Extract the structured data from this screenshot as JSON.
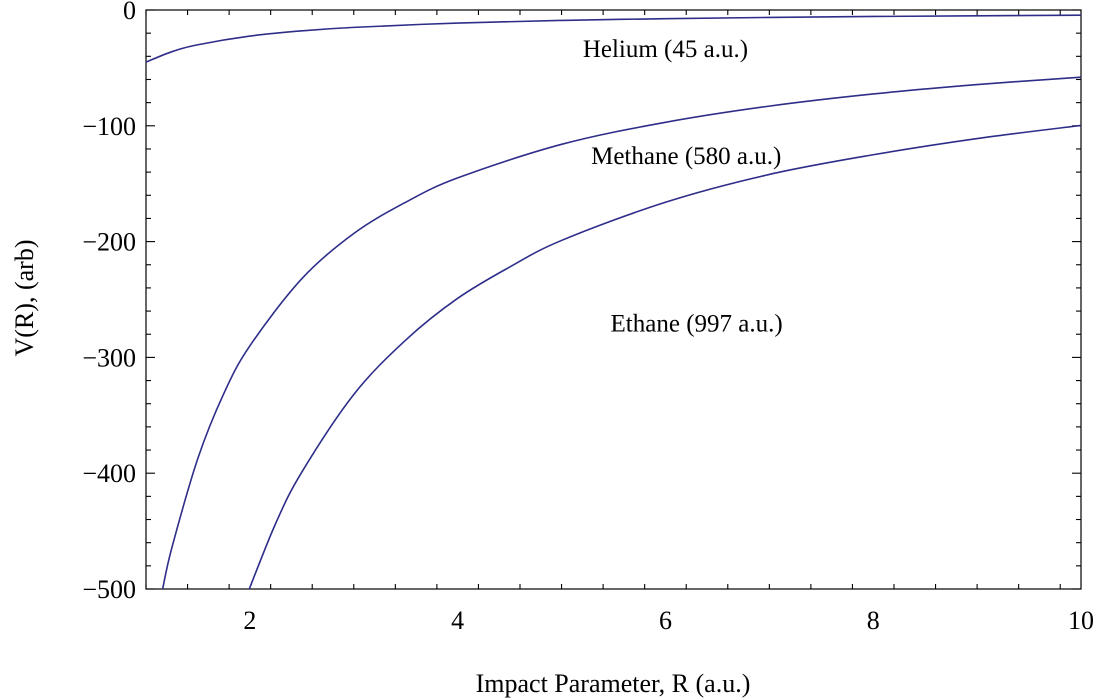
{
  "chart_data": {
    "type": "line",
    "title": "",
    "xlabel": "Impact Parameter, R (a.u.)",
    "ylabel": "V(R), (arb)",
    "xlim": [
      1,
      10
    ],
    "ylim": [
      -500,
      0
    ],
    "x_ticks": [
      2,
      4,
      6,
      8,
      10
    ],
    "y_ticks": [
      0,
      -100,
      -200,
      -300,
      -400,
      -500
    ],
    "x_tick_labels": [
      "2",
      "4",
      "6",
      "8",
      "10"
    ],
    "y_tick_labels": [
      "0",
      "−100",
      "−200",
      "−300",
      "−400",
      "−500"
    ],
    "grid": false,
    "line_color": "#2e2e8a",
    "series": [
      {
        "label": "Helium (45 a.u.)",
        "label_at": [
          6.0,
          -33
        ],
        "x": [
          1,
          1.25,
          1.5,
          2,
          2.5,
          3,
          4,
          5,
          6,
          7,
          8,
          9,
          10
        ],
        "y": [
          -45,
          -36,
          -30,
          -22.5,
          -18,
          -15,
          -11.25,
          -9,
          -7.5,
          -6.4,
          -5.6,
          -5,
          -4.5
        ]
      },
      {
        "label": "Methane (580 a.u.)",
        "label_at": [
          6.2,
          -125
        ],
        "x": [
          1.16,
          1.25,
          1.5,
          1.75,
          2,
          2.5,
          3,
          3.5,
          4,
          5,
          6,
          7,
          8,
          9,
          10
        ],
        "y": [
          -500,
          -464,
          -387,
          -331,
          -290,
          -232,
          -193,
          -166,
          -145,
          -116,
          -97,
          -83,
          -72.5,
          -64.4,
          -58
        ]
      },
      {
        "label": "Ethane (997 a.u.)",
        "label_at": [
          6.3,
          -270
        ],
        "x": [
          1.994,
          2.25,
          2.5,
          3,
          3.5,
          4,
          4.5,
          5,
          6,
          7,
          8,
          9,
          10
        ],
        "y": [
          -500,
          -443,
          -399,
          -332,
          -285,
          -249,
          -222,
          -199,
          -166,
          -142,
          -125,
          -111,
          -99.7
        ]
      }
    ]
  }
}
